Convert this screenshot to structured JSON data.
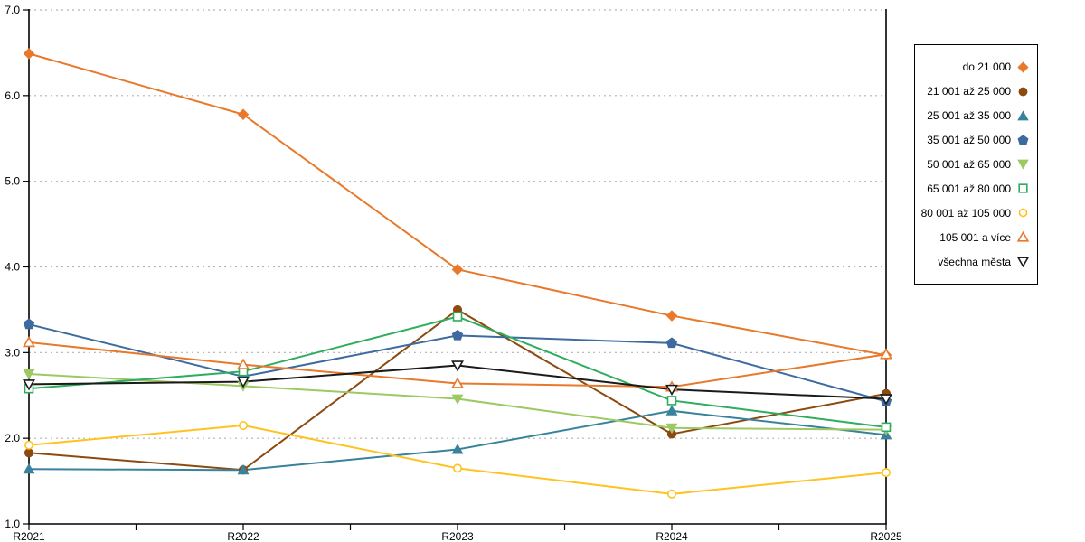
{
  "chart_data": {
    "type": "line",
    "title": "",
    "xlabel": "",
    "ylabel": "",
    "categories": [
      "R2021",
      "R2022",
      "R2023",
      "R2024",
      "R2025"
    ],
    "ylim": [
      1.0,
      7.0
    ],
    "ytick_step": 1.0,
    "ytick_labels": [
      "1.0",
      "2.0",
      "3.0",
      "4.0",
      "5.0",
      "6.0",
      "7.0"
    ],
    "grid": "horizontal-dashed",
    "legend_position": "right",
    "colors": {
      "grid": "#b3b3b3",
      "axis": "#000000",
      "background": "#ffffff"
    },
    "series": [
      {
        "name": "do 21 000",
        "marker": "diamond",
        "filled": true,
        "color": "#e8792b",
        "values": [
          6.49,
          5.78,
          3.97,
          3.43,
          2.97
        ]
      },
      {
        "name": "21 001 až 25 000",
        "marker": "circle",
        "filled": true,
        "color": "#8c4a10",
        "values": [
          1.83,
          1.63,
          3.5,
          2.05,
          2.52
        ]
      },
      {
        "name": "25 001 až 35 000",
        "marker": "triangle-up",
        "filled": true,
        "color": "#38839b",
        "values": [
          1.64,
          1.63,
          1.87,
          2.32,
          2.04
        ]
      },
      {
        "name": "35 001 až 50 000",
        "marker": "pentagon",
        "filled": true,
        "color": "#3d6ba0",
        "values": [
          3.33,
          2.72,
          3.2,
          3.11,
          2.43
        ]
      },
      {
        "name": "50 001 až 65 000",
        "marker": "triangle-down",
        "filled": true,
        "color": "#9dc963",
        "values": [
          2.75,
          2.61,
          2.46,
          2.12,
          2.1
        ]
      },
      {
        "name": "65 001 až 80 000",
        "marker": "square",
        "filled": false,
        "color": "#2fad5e",
        "values": [
          2.58,
          2.78,
          3.42,
          2.44,
          2.13
        ]
      },
      {
        "name": "80 001 až 105 000",
        "marker": "circle",
        "filled": false,
        "color": "#ffc320",
        "values": [
          1.92,
          2.15,
          1.65,
          1.35,
          1.6
        ]
      },
      {
        "name": "105 001 a více",
        "marker": "triangle-up",
        "filled": false,
        "color": "#e8792b",
        "values": [
          3.12,
          2.86,
          2.64,
          2.6,
          2.98
        ]
      },
      {
        "name": "všechna města",
        "marker": "triangle-down",
        "filled": false,
        "color": "#1a1a1a",
        "values": [
          2.63,
          2.66,
          2.85,
          2.57,
          2.46
        ]
      }
    ]
  }
}
